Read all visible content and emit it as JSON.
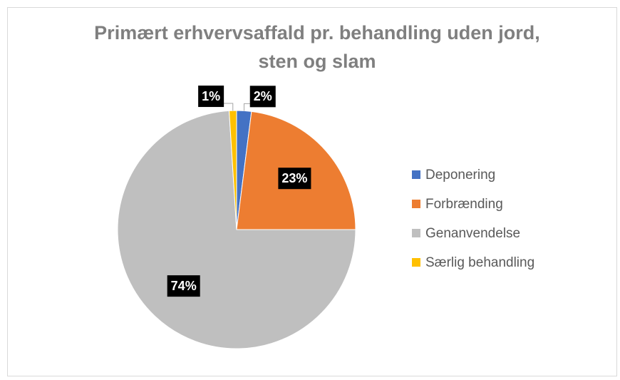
{
  "chart_data": {
    "type": "pie",
    "title": [
      "Primært erhvervsaffald pr. behandling uden jord,",
      "sten og slam"
    ],
    "categories": [
      "Deponering",
      "Forbrænding",
      "Genanvendelse",
      "Særlig behandling"
    ],
    "values": [
      2,
      23,
      74,
      1
    ],
    "value_labels": [
      "2%",
      "23%",
      "74%",
      "1%"
    ],
    "colors": [
      "#4472c4",
      "#ed7d31",
      "#bfbfbf",
      "#ffc000"
    ],
    "legend": "right"
  }
}
